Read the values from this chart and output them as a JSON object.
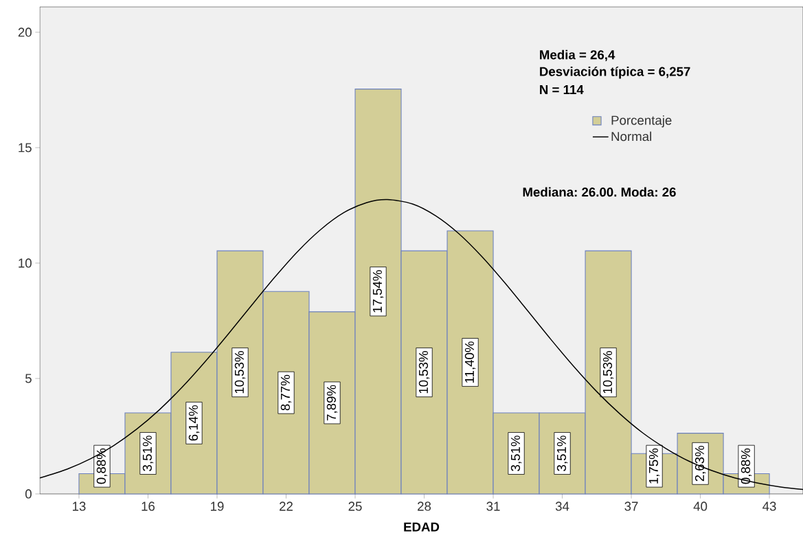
{
  "chart_data": {
    "type": "histogram",
    "xlabel": "EDAD",
    "bins": [
      13,
      15,
      17,
      19,
      21,
      23,
      25,
      27,
      29,
      31,
      33,
      35,
      37,
      39,
      41,
      43
    ],
    "series": [
      {
        "name": "Porcentaje",
        "color": "#d3ce97",
        "values": [
          0.88,
          3.51,
          6.14,
          10.53,
          8.77,
          7.89,
          17.54,
          10.53,
          11.4,
          3.51,
          3.51,
          10.53,
          1.75,
          2.63,
          0.88
        ],
        "value_labels": [
          "0,88%",
          "3,51%",
          "6,14%",
          "10,53%",
          "8,77%",
          "7,89%",
          "17,54%",
          "10,53%",
          "11,40%",
          "3,51%",
          "3,51%",
          "10,53%",
          "1,75%",
          "2,63%",
          "0,88%"
        ]
      },
      {
        "name": "Normal",
        "type": "line",
        "color": "#000000",
        "x": [
          11.3,
          12.5,
          13.5,
          14.5,
          15.5,
          16.5,
          17.5,
          18.5,
          19.5,
          20.5,
          21.5,
          22.5,
          23.5,
          24.5,
          25.5,
          26.4,
          27.5,
          28.5,
          29.5,
          30.5,
          31.5,
          32.5,
          33.5,
          34.5,
          35.5,
          36.5,
          37.5,
          38.5,
          39.5,
          40.5,
          41.5,
          42.5,
          43.5,
          44.46
        ],
        "values": [
          0.69,
          1.08,
          1.52,
          2.09,
          2.8,
          3.65,
          4.64,
          5.75,
          6.94,
          8.17,
          9.38,
          10.5,
          11.45,
          12.18,
          12.62,
          12.75,
          12.56,
          12.05,
          11.28,
          10.29,
          9.15,
          7.93,
          6.7,
          5.52,
          4.43,
          3.47,
          2.64,
          1.97,
          1.42,
          1.01,
          0.69,
          0.47,
          0.3,
          0.19
        ]
      }
    ],
    "annotations": [
      "Media = 26,4",
      "Desviación típica = 6,257",
      "N = 114",
      "Mediana: 26.00. Moda: 26"
    ],
    "xlim": [
      11.3,
      44.46
    ],
    "ylim": [
      0,
      21.1
    ],
    "xticks": [
      13,
      16,
      19,
      22,
      25,
      28,
      31,
      34,
      37,
      40,
      43
    ],
    "yticks": [
      0,
      5,
      10,
      15,
      20
    ],
    "legend": "top right"
  }
}
